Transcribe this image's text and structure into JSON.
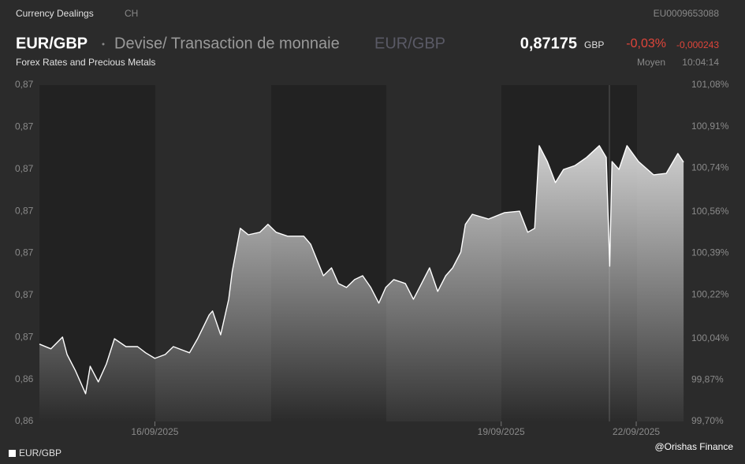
{
  "header": {
    "section": "Currency Dealings",
    "country": "CH",
    "isin": "EU0009653088",
    "pair": "EUR/GBP",
    "description": "Devise/ Transaction de monnaie",
    "symbol": "EUR/GBP",
    "price": "0,87175",
    "currency": "GBP",
    "change_pct": "-0,03%",
    "change_abs": "-0,000243",
    "category": "Forex Rates and Precious Metals",
    "quote_type": "Moyen",
    "time": "10:04:14"
  },
  "credit": "@Orishas Finance",
  "chart_data": {
    "type": "area",
    "xlim": [
      0,
      5.6
    ],
    "xticks": [
      {
        "value": 1,
        "label": "16/09/2025"
      },
      {
        "value": 4,
        "label": "19/09/2025"
      },
      {
        "value": 5.17,
        "label": "22/09/2025"
      }
    ],
    "ylim": [
      0.8625,
      0.8745
    ],
    "yticks": [
      {
        "value": 0.8625,
        "label": "0,86"
      },
      {
        "value": 0.864,
        "label": "0,86"
      },
      {
        "value": 0.8655,
        "label": "0,87"
      },
      {
        "value": 0.867,
        "label": "0,87"
      },
      {
        "value": 0.8685,
        "label": "0,87"
      },
      {
        "value": 0.87,
        "label": "0,87"
      },
      {
        "value": 0.8715,
        "label": "0,87"
      },
      {
        "value": 0.873,
        "label": "0,87"
      },
      {
        "value": 0.8745,
        "label": "0,87"
      }
    ],
    "y2lim": [
      99.7,
      101.08
    ],
    "y2ticks": [
      {
        "value": 99.7,
        "label": "99,70%"
      },
      {
        "value": 99.87,
        "label": "99,87%"
      },
      {
        "value": 100.04,
        "label": "100,04%"
      },
      {
        "value": 100.22,
        "label": "100,22%"
      },
      {
        "value": 100.39,
        "label": "100,39%"
      },
      {
        "value": 100.56,
        "label": "100,56%"
      },
      {
        "value": 100.74,
        "label": "100,74%"
      },
      {
        "value": 100.91,
        "label": "100,91%"
      },
      {
        "value": 101.08,
        "label": "101,08%"
      }
    ],
    "grid": false,
    "series": [
      {
        "name": "EUR/GBP",
        "color": "#ffffff",
        "x": [
          0,
          0.1,
          0.2,
          0.24,
          0.31,
          0.4,
          0.44,
          0.51,
          0.58,
          0.65,
          0.75,
          0.85,
          0.92,
          1.0,
          1.09,
          1.16,
          1.3,
          1.37,
          1.42,
          1.47,
          1.5,
          1.57,
          1.64,
          1.67,
          1.74,
          1.81,
          1.91,
          1.98,
          2.05,
          2.15,
          2.29,
          2.35,
          2.46,
          2.53,
          2.59,
          2.66,
          2.73,
          2.8,
          2.87,
          2.94,
          3.0,
          3.07,
          3.17,
          3.24,
          3.31,
          3.38,
          3.45,
          3.52,
          3.58,
          3.65,
          3.69,
          3.75,
          3.89,
          4.03,
          4.16,
          4.23,
          4.29,
          4.33,
          4.4,
          4.47,
          4.54,
          4.64,
          4.74,
          4.85,
          4.91,
          4.94,
          4.96,
          5.02,
          5.09,
          5.19,
          5.32,
          5.43,
          5.53,
          5.58
        ],
        "values": [
          0.86526,
          0.86509,
          0.86551,
          0.86489,
          0.86433,
          0.86349,
          0.86447,
          0.86391,
          0.86455,
          0.86545,
          0.86517,
          0.86517,
          0.86495,
          0.86475,
          0.86489,
          0.86517,
          0.86495,
          0.86545,
          0.86587,
          0.8663,
          0.86644,
          0.86559,
          0.86686,
          0.86784,
          0.86939,
          0.86916,
          0.86925,
          0.86953,
          0.86925,
          0.86911,
          0.86911,
          0.86882,
          0.8677,
          0.86798,
          0.86742,
          0.86728,
          0.86756,
          0.8677,
          0.86728,
          0.86672,
          0.86728,
          0.86756,
          0.86742,
          0.86686,
          0.86742,
          0.86798,
          0.86714,
          0.8677,
          0.86798,
          0.86854,
          0.86953,
          0.86989,
          0.86972,
          0.86995,
          0.87,
          0.86925,
          0.86939,
          0.87234,
          0.87177,
          0.87102,
          0.87149,
          0.87163,
          0.87192,
          0.87234,
          0.87192,
          0.86804,
          0.87177,
          0.87149,
          0.87234,
          0.87177,
          0.8713,
          0.87135,
          0.87206,
          0.87175
        ]
      }
    ]
  }
}
